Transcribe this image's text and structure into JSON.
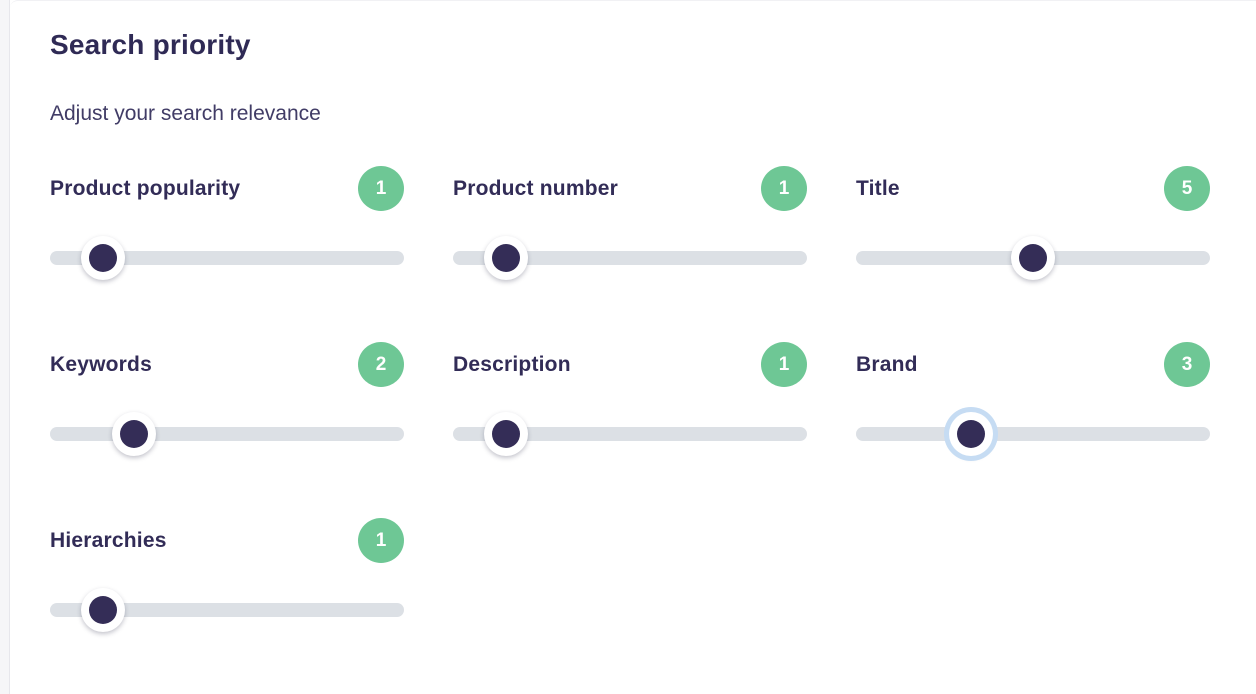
{
  "page": {
    "title": "Search priority",
    "subtitle": "Adjust your search relevance"
  },
  "colors": {
    "badge_green": "#6ec795",
    "thumb_navy": "#342d57",
    "track_gray": "#dce0e5",
    "heading_navy": "#2f2a55",
    "focus_ring_blue": "#c6dcf3"
  },
  "sliders": {
    "min": 0,
    "max": 10,
    "items": [
      {
        "label": "Product popularity",
        "badge": "1",
        "value": 1,
        "focused": false
      },
      {
        "label": "Product number",
        "badge": "1",
        "value": 1,
        "focused": false
      },
      {
        "label": "Title",
        "badge": "5",
        "value": 5,
        "focused": false
      },
      {
        "label": "Keywords",
        "badge": "2",
        "value": 2,
        "focused": false
      },
      {
        "label": "Description",
        "badge": "1",
        "value": 1,
        "focused": false
      },
      {
        "label": "Brand",
        "badge": "3",
        "value": 3,
        "focused": true
      },
      {
        "label": "Hierarchies",
        "badge": "1",
        "value": 1,
        "focused": false
      }
    ]
  }
}
